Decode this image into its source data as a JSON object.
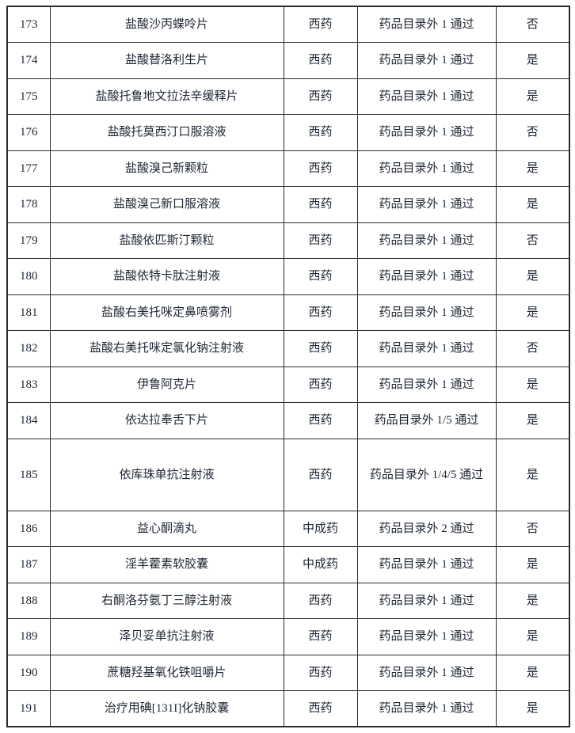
{
  "table": {
    "rows": [
      {
        "seq": "173",
        "name": "盐酸沙丙蝶呤片",
        "type": "西药",
        "catalog": "药品目录外 1 通过",
        "pass": "否",
        "tall": false
      },
      {
        "seq": "174",
        "name": "盐酸替洛利生片",
        "type": "西药",
        "catalog": "药品目录外 1 通过",
        "pass": "是",
        "tall": false
      },
      {
        "seq": "175",
        "name": "盐酸托鲁地文拉法辛缓释片",
        "type": "西药",
        "catalog": "药品目录外 1 通过",
        "pass": "是",
        "tall": false
      },
      {
        "seq": "176",
        "name": "盐酸托莫西汀口服溶液",
        "type": "西药",
        "catalog": "药品目录外 1 通过",
        "pass": "否",
        "tall": false
      },
      {
        "seq": "177",
        "name": "盐酸溴己新颗粒",
        "type": "西药",
        "catalog": "药品目录外 1 通过",
        "pass": "是",
        "tall": false
      },
      {
        "seq": "178",
        "name": "盐酸溴己新口服溶液",
        "type": "西药",
        "catalog": "药品目录外 1 通过",
        "pass": "是",
        "tall": false
      },
      {
        "seq": "179",
        "name": "盐酸依匹斯汀颗粒",
        "type": "西药",
        "catalog": "药品目录外 1 通过",
        "pass": "否",
        "tall": false
      },
      {
        "seq": "180",
        "name": "盐酸依特卡肽注射液",
        "type": "西药",
        "catalog": "药品目录外 1 通过",
        "pass": "是",
        "tall": false
      },
      {
        "seq": "181",
        "name": "盐酸右美托咪定鼻喷雾剂",
        "type": "西药",
        "catalog": "药品目录外 1 通过",
        "pass": "是",
        "tall": false
      },
      {
        "seq": "182",
        "name": "盐酸右美托咪定氯化钠注射液",
        "type": "西药",
        "catalog": "药品目录外 1 通过",
        "pass": "否",
        "tall": false
      },
      {
        "seq": "183",
        "name": "伊鲁阿克片",
        "type": "西药",
        "catalog": "药品目录外 1 通过",
        "pass": "是",
        "tall": false
      },
      {
        "seq": "184",
        "name": "依达拉奉舌下片",
        "type": "西药",
        "catalog": "药品目录外 1/5 通过",
        "pass": "是",
        "tall": false
      },
      {
        "seq": "185",
        "name": "依库珠单抗注射液",
        "type": "西药",
        "catalog": "药品目录外 1/4/5 通过",
        "pass": "是",
        "tall": true
      },
      {
        "seq": "186",
        "name": "益心酮滴丸",
        "type": "中成药",
        "catalog": "药品目录外 2 通过",
        "pass": "否",
        "tall": false
      },
      {
        "seq": "187",
        "name": "淫羊藿素软胶囊",
        "type": "中成药",
        "catalog": "药品目录外 1 通过",
        "pass": "是",
        "tall": false
      },
      {
        "seq": "188",
        "name": "右酮洛芬氨丁三醇注射液",
        "type": "西药",
        "catalog": "药品目录外 1 通过",
        "pass": "是",
        "tall": false
      },
      {
        "seq": "189",
        "name": "泽贝妥单抗注射液",
        "type": "西药",
        "catalog": "药品目录外 1 通过",
        "pass": "是",
        "tall": false
      },
      {
        "seq": "190",
        "name": "蔗糖羟基氧化铁咀嚼片",
        "type": "西药",
        "catalog": "药品目录外 1 通过",
        "pass": "是",
        "tall": false
      },
      {
        "seq": "191",
        "name": "治疗用碘[131I]化钠胶囊",
        "type": "西药",
        "catalog": "药品目录外 1 通过",
        "pass": "是",
        "tall": false
      }
    ]
  }
}
